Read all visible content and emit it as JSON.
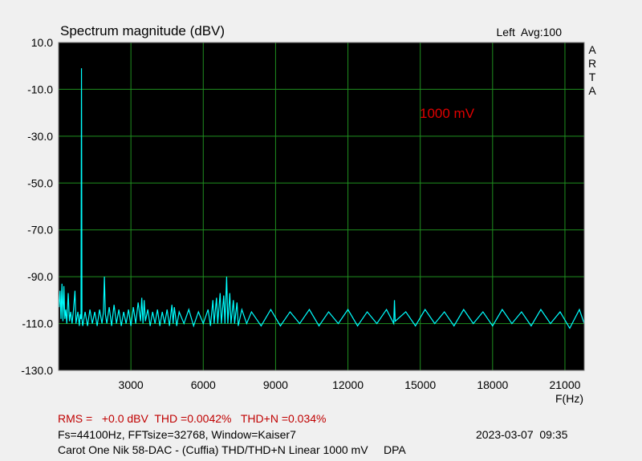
{
  "chart_data": {
    "type": "line",
    "title": "Spectrum magnitude (dBV)",
    "channel_info": "Left  Avg:100",
    "logo": [
      "A",
      "R",
      "T",
      "A"
    ],
    "annotation": "1000 mV",
    "x_label": "F(Hz)",
    "xlim": [
      0,
      21800
    ],
    "ylim": [
      -130,
      10
    ],
    "xticks": [
      3000,
      6000,
      9000,
      12000,
      15000,
      18000,
      21000
    ],
    "yticks": [
      {
        "value": 10,
        "label": "10.0"
      },
      {
        "value": -10,
        "label": "-10.0"
      },
      {
        "value": -30,
        "label": "-30.0"
      },
      {
        "value": -50,
        "label": "-50.0"
      },
      {
        "value": -70,
        "label": "-70.0"
      },
      {
        "value": -90,
        "label": "-90.0"
      },
      {
        "value": -110,
        "label": "-110.0"
      },
      {
        "value": -130,
        "label": "-130.0"
      }
    ],
    "grid": true,
    "background": "#000000",
    "grid_color": "#1f8f1f",
    "x": [
      20,
      60,
      100,
      140,
      180,
      220,
      260,
      300,
      340,
      400,
      450,
      500,
      560,
      620,
      680,
      720,
      800,
      860,
      900,
      930,
      950,
      970,
      1000,
      1100,
      1200,
      1300,
      1400,
      1500,
      1600,
      1700,
      1800,
      1860,
      1900,
      1940,
      2000,
      2100,
      2200,
      2300,
      2400,
      2500,
      2600,
      2700,
      2800,
      2900,
      3000,
      3100,
      3200,
      3300,
      3400,
      3450,
      3500,
      3550,
      3600,
      3700,
      3800,
      3900,
      4000,
      4100,
      4200,
      4300,
      4400,
      4500,
      4600,
      4700,
      4750,
      4800,
      4900,
      5000,
      5200,
      5400,
      5600,
      5800,
      6000,
      6200,
      6300,
      6400,
      6450,
      6550,
      6600,
      6700,
      6750,
      6850,
      6900,
      6970,
      7020,
      7100,
      7150,
      7250,
      7300,
      7400,
      7450,
      7600,
      7800,
      8000,
      8400,
      8800,
      9200,
      9600,
      10000,
      10400,
      10800,
      11200,
      11600,
      12000,
      12400,
      12800,
      13200,
      13600,
      13900,
      13930,
      13960,
      14400,
      14800,
      15200,
      15600,
      16000,
      16400,
      16800,
      17200,
      17600,
      18000,
      18400,
      18800,
      19200,
      19600,
      20000,
      20400,
      20800,
      21200,
      21600,
      21800
    ],
    "series": [
      {
        "name": "Left",
        "color": "#00ffff",
        "values": [
          -103,
          -96,
          -108,
          -93,
          -109,
          -94,
          -108,
          -104,
          -110,
          -97,
          -109,
          -105,
          -110,
          -104,
          -96,
          -110,
          -105,
          -111,
          -106,
          -108,
          -1,
          -108,
          -111,
          -105,
          -111,
          -104,
          -110,
          -105,
          -111,
          -104,
          -110,
          -105,
          -90,
          -106,
          -110,
          -103,
          -111,
          -102,
          -110,
          -104,
          -111,
          -105,
          -110,
          -104,
          -111,
          -103,
          -110,
          -101,
          -109,
          -99,
          -110,
          -100,
          -109,
          -104,
          -111,
          -105,
          -110,
          -104,
          -111,
          -105,
          -110,
          -104,
          -111,
          -102,
          -110,
          -103,
          -111,
          -105,
          -110,
          -104,
          -111,
          -105,
          -110,
          -104,
          -111,
          -100,
          -110,
          -99,
          -110,
          -97,
          -110,
          -98,
          -110,
          -90,
          -110,
          -97,
          -110,
          -100,
          -110,
          -101,
          -111,
          -104,
          -110,
          -105,
          -111,
          -104,
          -111,
          -105,
          -110,
          -104,
          -111,
          -105,
          -110,
          -104,
          -111,
          -105,
          -110,
          -104,
          -110,
          -100,
          -109,
          -105,
          -111,
          -104,
          -110,
          -105,
          -111,
          -104,
          -110,
          -105,
          -111,
          -104,
          -110,
          -105,
          -111,
          -104,
          -110,
          -105,
          -112,
          -104,
          -110
        ]
      }
    ],
    "footer": {
      "measurements": "RMS =   +0.0 dBV  THD =0.0042%   THD+N =0.034%",
      "settings": "Fs=44100Hz, FFTsize=32768, Window=Kaiser7",
      "timestamp": "2023-03-07  09:35",
      "description": "Carot One Nik 58-DAC - (Cuffia) THD/THD+N Linear 1000 mV     DPA"
    }
  }
}
